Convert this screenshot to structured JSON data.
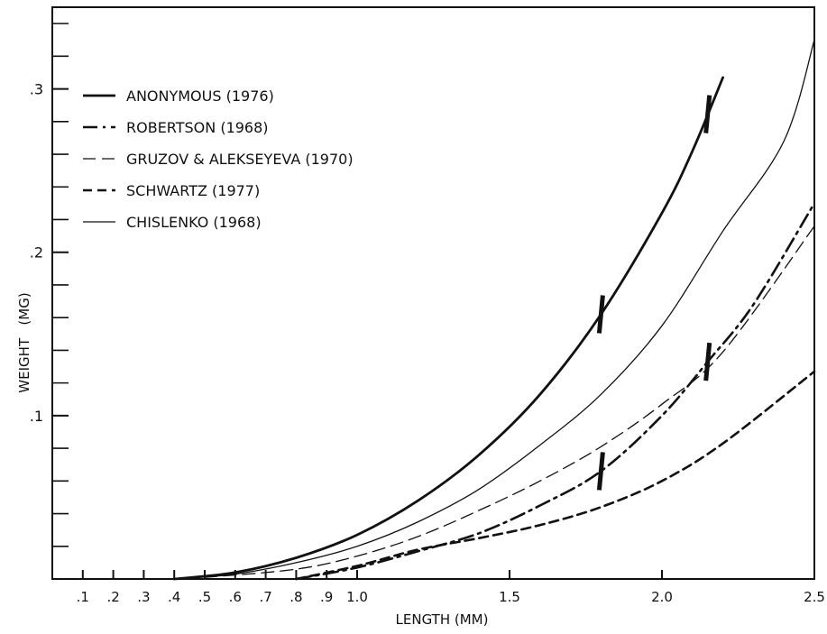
{
  "chart_data": {
    "type": "line",
    "xlabel": "LENGTH (MM)",
    "ylabel": "WEIGHT   (MG)",
    "xlim": [
      0,
      2.5
    ],
    "ylim": [
      0,
      0.35
    ],
    "x_ticks": [
      {
        "value": 0.1,
        "label": ".1"
      },
      {
        "value": 0.2,
        "label": ".2"
      },
      {
        "value": 0.3,
        "label": ".3"
      },
      {
        "value": 0.4,
        "label": ".4"
      },
      {
        "value": 0.5,
        "label": ".5"
      },
      {
        "value": 0.6,
        "label": ".6"
      },
      {
        "value": 0.7,
        "label": ".7"
      },
      {
        "value": 0.8,
        "label": ".8"
      },
      {
        "value": 0.9,
        "label": ".9"
      },
      {
        "value": 1.0,
        "label": "1.0"
      },
      {
        "value": 1.5,
        "label": "1.5"
      },
      {
        "value": 2.0,
        "label": "2.0"
      },
      {
        "value": 2.5,
        "label": "2.5"
      }
    ],
    "y_ticks": [
      {
        "value": 0.1,
        "label": ".1"
      },
      {
        "value": 0.2,
        "label": ".2"
      },
      {
        "value": 0.3,
        "label": ".3"
      }
    ],
    "y_minor_ticks": [
      0.02,
      0.04,
      0.06,
      0.08,
      0.12,
      0.14,
      0.16,
      0.18,
      0.22,
      0.24,
      0.26,
      0.28,
      0.32,
      0.34
    ],
    "grid": false,
    "legend_position": "top-left",
    "series": [
      {
        "name": "ANONYMOUS (1976)",
        "style": "solid-thick",
        "x": [
          0.4,
          0.6,
          0.8,
          1.0,
          1.2,
          1.4,
          1.6,
          1.8,
          2.0,
          2.1,
          2.2
        ],
        "y": [
          0.0,
          0.004,
          0.013,
          0.027,
          0.048,
          0.076,
          0.113,
          0.162,
          0.224,
          0.262,
          0.307
        ],
        "markers_x": [
          1.8,
          2.15
        ]
      },
      {
        "name": "ROBERTSON (1968)",
        "style": "dashdot-thick",
        "x": [
          0.8,
          1.0,
          1.2,
          1.4,
          1.6,
          1.8,
          2.0,
          2.15,
          2.3,
          2.5
        ],
        "y": [
          0.0,
          0.007,
          0.017,
          0.028,
          0.045,
          0.066,
          0.1,
          0.133,
          0.168,
          0.23
        ],
        "markers_x": [
          1.8,
          2.15
        ]
      },
      {
        "name": "GRUZOV & ALEKSEYEVA (1970)",
        "style": "longdash-thin",
        "x": [
          0.5,
          0.8,
          1.0,
          1.2,
          1.4,
          1.6,
          1.8,
          2.0,
          2.2,
          2.5
        ],
        "y": [
          0.001,
          0.006,
          0.014,
          0.026,
          0.042,
          0.06,
          0.081,
          0.107,
          0.139,
          0.216
        ]
      },
      {
        "name": "SCHWARTZ (1977)",
        "style": "dash-thick",
        "x": [
          0.8,
          1.0,
          1.2,
          1.4,
          1.6,
          1.8,
          2.0,
          2.2,
          2.5
        ],
        "y": [
          0.0,
          0.008,
          0.018,
          0.025,
          0.033,
          0.044,
          0.06,
          0.083,
          0.127
        ]
      },
      {
        "name": "CHISLENKO (1968)",
        "style": "solid-thin",
        "x": [
          0.4,
          0.6,
          0.8,
          1.0,
          1.2,
          1.4,
          1.6,
          1.8,
          2.0,
          2.2,
          2.4,
          2.5
        ],
        "y": [
          0.0,
          0.003,
          0.01,
          0.02,
          0.035,
          0.055,
          0.082,
          0.113,
          0.155,
          0.213,
          0.268,
          0.33
        ]
      }
    ]
  }
}
